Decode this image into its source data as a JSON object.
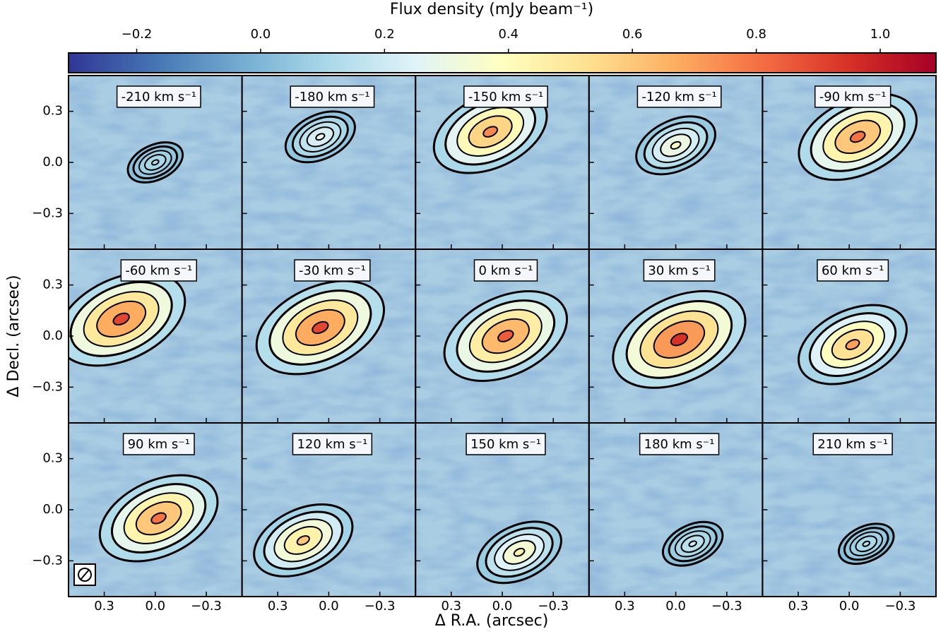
{
  "chart_data": {
    "type": "channel-map",
    "xlabel": "Δ R.A. (arcsec)",
    "ylabel": "Δ Decl. (arcsec)",
    "xlim": [
      0.51,
      -0.51
    ],
    "ylim": [
      -0.51,
      0.51
    ],
    "xticks": [
      0.3,
      {
        "value": 0,
        "label": "0.0"
      },
      {
        "value": -0.3,
        "label": "−0.3"
      }
    ],
    "yticks": [
      0.3,
      {
        "value": 0,
        "label": "0.0"
      },
      {
        "value": -0.3,
        "label": "−0.3"
      }
    ],
    "colorbar": {
      "label": "Flux density (mJy beam⁻¹)",
      "lim": [
        -0.31,
        1.09
      ],
      "ticks": [
        {
          "value": -0.2,
          "label": "−0.2"
        },
        {
          "value": 0,
          "label": "0.0"
        },
        0.2,
        0.4,
        0.6,
        0.8,
        {
          "value": 1,
          "label": "1.0"
        }
      ],
      "colors": [
        "#313695",
        "#4575b4",
        "#74add1",
        "#abd9e9",
        "#e0f3f8",
        "#ffffbf",
        "#fee090",
        "#fdae61",
        "#f46d43",
        "#d73027",
        "#a50026"
      ]
    },
    "panels": [
      {
        "label": "-210 km s⁻¹",
        "peak": 0.15,
        "x": 0.0,
        "y": 0.0
      },
      {
        "label": "-180 km s⁻¹",
        "peak": 0.3,
        "x": 0.05,
        "y": 0.15
      },
      {
        "label": "-150 km s⁻¹",
        "peak": 0.75,
        "x": 0.07,
        "y": 0.18
      },
      {
        "label": "-120 km s⁻¹",
        "peak": 0.4,
        "x": 0.0,
        "y": 0.1
      },
      {
        "label": "-90 km s⁻¹",
        "peak": 0.8,
        "x": -0.05,
        "y": 0.15
      },
      {
        "label": "-60 km s⁻¹",
        "peak": 0.9,
        "x": 0.2,
        "y": 0.1
      },
      {
        "label": "-30 km s⁻¹",
        "peak": 0.9,
        "x": 0.05,
        "y": 0.05
      },
      {
        "label": "0 km s⁻¹",
        "peak": 0.85,
        "x": -0.02,
        "y": 0.0
      },
      {
        "label": "30 km s⁻¹",
        "peak": 0.95,
        "x": -0.02,
        "y": -0.02
      },
      {
        "label": "60 km s⁻¹",
        "peak": 0.7,
        "x": -0.02,
        "y": -0.05
      },
      {
        "label": "90 km s⁻¹",
        "peak": 0.8,
        "x": -0.02,
        "y": -0.05
      },
      {
        "label": "120 km s⁻¹",
        "peak": 0.6,
        "x": 0.15,
        "y": -0.18
      },
      {
        "label": "150 km s⁻¹",
        "peak": 0.45,
        "x": -0.1,
        "y": -0.25
      },
      {
        "label": "180 km s⁻¹",
        "peak": 0.2,
        "x": -0.1,
        "y": -0.2
      },
      {
        "label": "210 km s⁻¹",
        "peak": 0.15,
        "x": -0.1,
        "y": -0.2
      }
    ]
  }
}
